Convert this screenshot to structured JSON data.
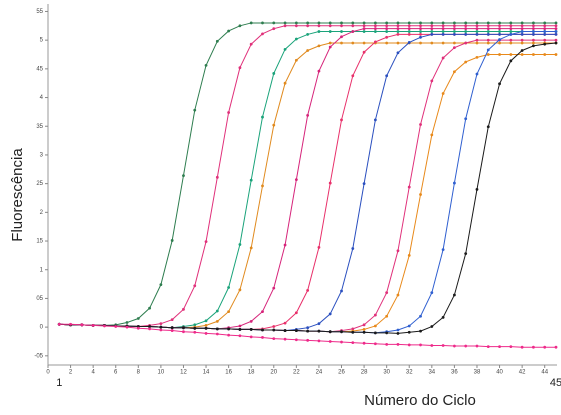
{
  "chart_data": {
    "type": "line",
    "y_label": "Fluorescência",
    "x_label": "Número do Ciclo",
    "xlim": [
      0,
      45
    ],
    "ylim": [
      -0.66,
      5.63
    ],
    "xticks": [
      0,
      2,
      4,
      6,
      8,
      10,
      12,
      14,
      16,
      18,
      20,
      22,
      24,
      26,
      28,
      30,
      32,
      34,
      36,
      38,
      40,
      42,
      44
    ],
    "x_range_labels": [
      1,
      45
    ],
    "yticks": [
      {
        "value": -0.5,
        "label": "-05"
      },
      0,
      {
        "value": 0.5,
        "label": "05"
      },
      1,
      {
        "value": 1.5,
        "label": "15"
      },
      2,
      {
        "value": 2.5,
        "label": "25"
      },
      3,
      {
        "value": 3.5,
        "label": "35"
      },
      4,
      {
        "value": 4.5,
        "label": "45"
      },
      5,
      {
        "value": 5.5,
        "label": "55"
      }
    ],
    "grid": false,
    "markers": true,
    "x": [
      1,
      2,
      3,
      4,
      5,
      6,
      7,
      8,
      9,
      10,
      11,
      12,
      13,
      14,
      15,
      16,
      17,
      18,
      19,
      20,
      21,
      22,
      23,
      24,
      25,
      26,
      27,
      28,
      29,
      30,
      31,
      32,
      33,
      34,
      35,
      36,
      37,
      38,
      39,
      40,
      41,
      42,
      43,
      44,
      45
    ],
    "series": [
      {
        "color": "#2e7d4f",
        "values": [
          0.05,
          0.04,
          0.04,
          0.03,
          0.03,
          0.04,
          0.08,
          0.15,
          0.33,
          0.74,
          1.51,
          2.64,
          3.78,
          4.56,
          4.98,
          5.16,
          5.25,
          5.3,
          5.3,
          5.3,
          5.3,
          5.3,
          5.3,
          5.3,
          5.3,
          5.3,
          5.3,
          5.3,
          5.3,
          5.3,
          5.3,
          5.3,
          5.3,
          5.3,
          5.3,
          5.3,
          5.3,
          5.3,
          5.3,
          5.3,
          5.3,
          5.3,
          5.3,
          5.3,
          5.3
        ]
      },
      {
        "color": "#e0307a",
        "values": [
          0.05,
          0.04,
          0.04,
          0.03,
          0.03,
          0.02,
          0.02,
          0.01,
          0.03,
          0.06,
          0.13,
          0.31,
          0.72,
          1.49,
          2.61,
          3.74,
          4.52,
          4.93,
          5.11,
          5.2,
          5.25,
          5.25,
          5.25,
          5.25,
          5.25,
          5.25,
          5.25,
          5.25,
          5.25,
          5.25,
          5.25,
          5.25,
          5.25,
          5.25,
          5.25,
          5.25,
          5.25,
          5.25,
          5.25,
          5.25,
          5.25,
          5.25,
          5.25,
          5.25,
          5.25
        ]
      },
      {
        "color": "#1aa37a",
        "values": [
          0.05,
          0.04,
          0.04,
          0.03,
          0.03,
          0.02,
          0.02,
          0.01,
          0.01,
          0,
          -0.01,
          0.01,
          0.04,
          0.11,
          0.28,
          0.69,
          1.44,
          2.56,
          3.66,
          4.42,
          4.84,
          5.02,
          5.1,
          5.15,
          5.15,
          5.15,
          5.15,
          5.15,
          5.15,
          5.15,
          5.15,
          5.15,
          5.15,
          5.15,
          5.15,
          5.15,
          5.15,
          5.15,
          5.15,
          5.15,
          5.15,
          5.15,
          5.15,
          5.15,
          5.15
        ]
      },
      {
        "color": "#e08a1e",
        "values": [
          0.05,
          0.04,
          0.04,
          0.03,
          0.03,
          0.02,
          0.02,
          0.01,
          0.01,
          0,
          -0.01,
          -0.01,
          0,
          0.03,
          0.1,
          0.27,
          0.65,
          1.38,
          2.46,
          3.52,
          4.25,
          4.65,
          4.82,
          4.9,
          4.95,
          4.95,
          4.95,
          4.95,
          4.95,
          4.95,
          4.95,
          4.95,
          4.95,
          4.95,
          4.95,
          4.95,
          4.95,
          4.95,
          4.95,
          4.95,
          4.95,
          4.95,
          4.95,
          4.95,
          4.95
        ]
      },
      {
        "color": "#d6247a",
        "values": [
          0.05,
          0.04,
          0.04,
          0.03,
          0.03,
          0.02,
          0.02,
          0.01,
          0.01,
          0,
          -0.01,
          -0.01,
          -0.02,
          -0.02,
          -0.03,
          -0.01,
          0.02,
          0.1,
          0.27,
          0.68,
          1.43,
          2.57,
          3.69,
          4.46,
          4.88,
          5.06,
          5.15,
          5.2,
          5.2,
          5.2,
          5.2,
          5.2,
          5.2,
          5.2,
          5.2,
          5.2,
          5.2,
          5.2,
          5.2,
          5.2,
          5.2,
          5.2,
          5.2,
          5.2,
          5.2
        ]
      },
      {
        "color": "#e8306a",
        "values": [
          0.05,
          0.04,
          0.04,
          0.03,
          0.03,
          0.02,
          0.02,
          0.01,
          0.01,
          0,
          -0.01,
          -0.01,
          -0.02,
          -0.02,
          -0.03,
          -0.03,
          -0.04,
          -0.04,
          -0.03,
          0.01,
          0.07,
          0.25,
          0.64,
          1.39,
          2.51,
          3.61,
          4.38,
          4.79,
          4.97,
          5.05,
          5.1,
          5.1,
          5.1,
          5.1,
          5.1,
          5.1,
          5.1,
          5.1,
          5.1,
          5.1,
          5.1,
          5.1,
          5.1,
          5.1,
          5.1
        ]
      },
      {
        "color": "#2a4fbf",
        "values": [
          0.05,
          0.04,
          0.04,
          0.03,
          0.03,
          0.02,
          0.02,
          0.01,
          0.01,
          0,
          -0.01,
          -0.01,
          -0.02,
          -0.02,
          -0.03,
          -0.03,
          -0.04,
          -0.04,
          -0.05,
          -0.05,
          -0.06,
          -0.04,
          -0.01,
          0.06,
          0.23,
          0.63,
          1.37,
          2.5,
          3.61,
          4.38,
          4.78,
          4.96,
          5.05,
          5.1,
          5.1,
          5.1,
          5.1,
          5.1,
          5.1,
          5.1,
          5.1,
          5.1,
          5.1,
          5.1,
          5.1
        ]
      },
      {
        "color": "#e0307a",
        "values": [
          0.05,
          0.04,
          0.04,
          0.03,
          0.03,
          0.02,
          0.02,
          0.01,
          0.01,
          0,
          -0.01,
          -0.01,
          -0.02,
          -0.02,
          -0.03,
          -0.03,
          -0.04,
          -0.04,
          -0.05,
          -0.05,
          -0.06,
          -0.06,
          -0.07,
          -0.07,
          -0.08,
          -0.06,
          -0.03,
          0.04,
          0.21,
          0.6,
          1.33,
          2.44,
          3.53,
          4.29,
          4.69,
          4.87,
          4.95,
          5.0,
          5.0,
          5.0,
          5.0,
          5.0,
          5.0,
          5.0,
          5.0
        ]
      },
      {
        "color": "#e8891a",
        "values": [
          0.05,
          0.04,
          0.04,
          0.03,
          0.03,
          0.02,
          0.02,
          0.01,
          0.01,
          0,
          -0.01,
          -0.01,
          -0.02,
          -0.02,
          -0.03,
          -0.03,
          -0.04,
          -0.04,
          -0.05,
          -0.05,
          -0.06,
          -0.06,
          -0.07,
          -0.07,
          -0.08,
          -0.08,
          -0.07,
          -0.04,
          0.02,
          0.19,
          0.56,
          1.25,
          2.31,
          3.35,
          4.07,
          4.45,
          4.62,
          4.7,
          4.75,
          4.75,
          4.75,
          4.75,
          4.75,
          4.75,
          4.75
        ]
      },
      {
        "color": "#2f5fd0",
        "values": [
          0.05,
          0.04,
          0.04,
          0.03,
          0.03,
          0.02,
          0.02,
          0.01,
          0.01,
          0,
          -0.01,
          -0.01,
          -0.02,
          -0.02,
          -0.03,
          -0.03,
          -0.04,
          -0.04,
          -0.05,
          -0.05,
          -0.06,
          -0.06,
          -0.07,
          -0.07,
          -0.08,
          -0.08,
          -0.09,
          -0.09,
          -0.1,
          -0.08,
          -0.05,
          0.02,
          0.19,
          0.6,
          1.35,
          2.51,
          3.63,
          4.41,
          4.83,
          5.01,
          5.1,
          5.15,
          5.15,
          5.15,
          5.15
        ]
      },
      {
        "color": "#1a1a1a",
        "values": [
          0.05,
          0.04,
          0.04,
          0.03,
          0.03,
          0.02,
          0.02,
          0.01,
          0.01,
          0,
          -0.01,
          -0.01,
          -0.02,
          -0.02,
          -0.03,
          -0.03,
          -0.04,
          -0.04,
          -0.05,
          -0.05,
          -0.06,
          -0.06,
          -0.07,
          -0.07,
          -0.08,
          -0.08,
          -0.09,
          -0.09,
          -0.1,
          -0.1,
          -0.11,
          -0.09,
          -0.07,
          0.01,
          0.17,
          0.56,
          1.28,
          2.4,
          3.49,
          4.24,
          4.64,
          4.82,
          4.9,
          4.93,
          4.95
        ]
      },
      {
        "color": "#ee2a8a",
        "values": [
          0.05,
          0.05,
          0.04,
          0.03,
          0.02,
          0.01,
          0,
          -0.02,
          -0.03,
          -0.05,
          -0.06,
          -0.08,
          -0.09,
          -0.11,
          -0.12,
          -0.14,
          -0.15,
          -0.17,
          -0.18,
          -0.2,
          -0.21,
          -0.22,
          -0.23,
          -0.24,
          -0.25,
          -0.26,
          -0.27,
          -0.28,
          -0.29,
          -0.3,
          -0.3,
          -0.31,
          -0.31,
          -0.32,
          -0.32,
          -0.33,
          -0.33,
          -0.33,
          -0.34,
          -0.34,
          -0.34,
          -0.35,
          -0.35,
          -0.35,
          -0.35
        ]
      }
    ]
  }
}
